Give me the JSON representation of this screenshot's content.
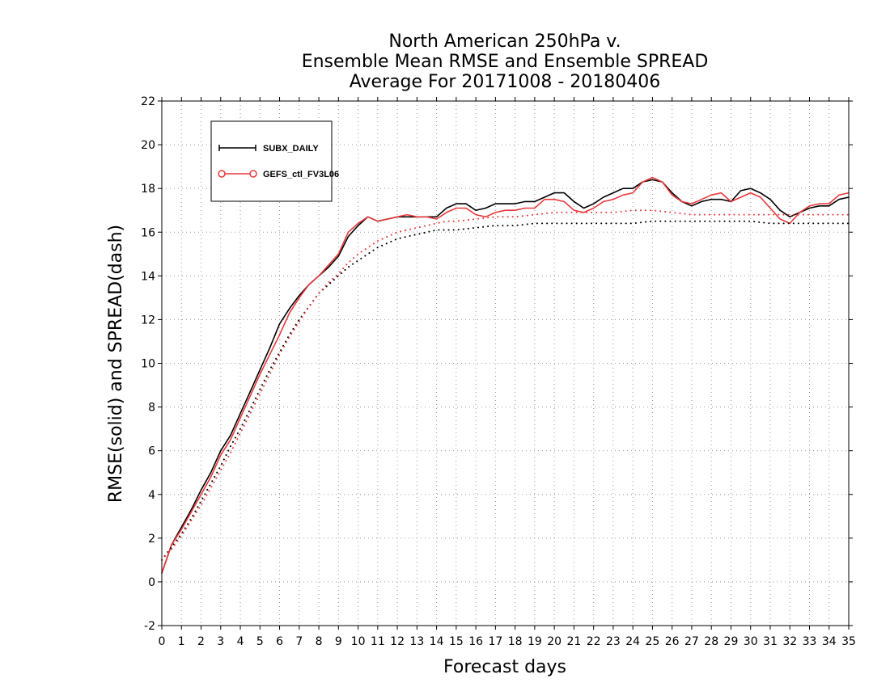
{
  "chart_data": {
    "type": "line",
    "title": [
      "North American 250hPa v.",
      "Ensemble Mean RMSE and Ensemble SPREAD",
      "Average For 20171008 - 20180406"
    ],
    "xlabel": "Forecast days",
    "ylabel": "RMSE(solid) and SPREAD(dash)",
    "xlim": [
      0,
      35
    ],
    "ylim": [
      -2,
      22
    ],
    "xticks": [
      "0",
      "1",
      "2",
      "3",
      "4",
      "5",
      "6",
      "7",
      "8",
      "9",
      "10",
      "11",
      "12",
      "13",
      "14",
      "15",
      "16",
      "17",
      "18",
      "19",
      "20",
      "21",
      "22",
      "23",
      "24",
      "25",
      "26",
      "27",
      "28",
      "29",
      "30",
      "31",
      "32",
      "33",
      "34",
      "35"
    ],
    "yticks": [
      "-2",
      "0",
      "2",
      "4",
      "6",
      "8",
      "10",
      "12",
      "14",
      "16",
      "18",
      "20",
      "22"
    ],
    "grid": true,
    "legend_position": "top-left",
    "colors": {
      "series1": "#000000",
      "series2": "#e8383b"
    },
    "series": [
      {
        "name": "SUBX_DAILY",
        "metric": "RMSE",
        "style": "solid",
        "color": "#000000",
        "x": [
          0,
          0.5,
          1,
          1.5,
          2,
          2.5,
          3,
          3.5,
          4,
          4.5,
          5,
          5.5,
          6,
          6.5,
          7,
          7.5,
          8,
          8.5,
          9,
          9.5,
          10,
          10.5,
          11,
          11.5,
          12,
          12.5,
          13,
          13.5,
          14,
          14.5,
          15,
          15.5,
          16,
          16.5,
          17,
          17.5,
          18,
          18.5,
          19,
          19.5,
          20,
          20.5,
          21,
          21.5,
          22,
          22.5,
          23,
          23.5,
          24,
          24.5,
          25,
          25.5,
          26,
          26.5,
          27,
          27.5,
          28,
          28.5,
          29,
          29.5,
          30,
          30.5,
          31,
          31.5,
          32,
          32.5,
          33,
          33.5,
          34,
          34.5,
          35
        ],
        "values": [
          0.4,
          1.7,
          2.5,
          3.3,
          4.2,
          5.0,
          6.0,
          6.7,
          7.7,
          8.7,
          9.7,
          10.7,
          11.8,
          12.5,
          13.1,
          13.6,
          14.0,
          14.4,
          14.9,
          15.8,
          16.3,
          16.7,
          16.5,
          16.6,
          16.7,
          16.7,
          16.7,
          16.7,
          16.7,
          17.1,
          17.3,
          17.3,
          17.0,
          17.1,
          17.3,
          17.3,
          17.3,
          17.4,
          17.4,
          17.6,
          17.8,
          17.8,
          17.4,
          17.1,
          17.3,
          17.6,
          17.8,
          18.0,
          18.0,
          18.3,
          18.4,
          18.3,
          17.8,
          17.4,
          17.2,
          17.4,
          17.5,
          17.5,
          17.4,
          17.9,
          18.0,
          17.8,
          17.5,
          17.0,
          16.7,
          16.9,
          17.1,
          17.2,
          17.2,
          17.5,
          17.6
        ]
      },
      {
        "name": "GEFS_ctl_FV3L06",
        "metric": "RMSE",
        "style": "solid",
        "color": "#e8383b",
        "x": [
          0,
          0.5,
          1,
          1.5,
          2,
          2.5,
          3,
          3.5,
          4,
          4.5,
          5,
          5.5,
          6,
          6.5,
          7,
          7.5,
          8,
          8.5,
          9,
          9.5,
          10,
          10.5,
          11,
          11.5,
          12,
          12.5,
          13,
          13.5,
          14,
          14.5,
          15,
          15.5,
          16,
          16.5,
          17,
          17.5,
          18,
          18.5,
          19,
          19.5,
          20,
          20.5,
          21,
          21.5,
          22,
          22.5,
          23,
          23.5,
          24,
          24.5,
          25,
          25.5,
          26,
          26.5,
          27,
          27.5,
          28,
          28.5,
          29,
          29.5,
          30,
          30.5,
          31,
          31.5,
          32,
          32.5,
          33,
          33.5,
          34,
          34.5,
          35
        ],
        "values": [
          0.4,
          1.7,
          2.4,
          3.2,
          4.0,
          4.8,
          5.8,
          6.5,
          7.5,
          8.5,
          9.5,
          10.4,
          11.3,
          12.3,
          13.0,
          13.6,
          14.0,
          14.5,
          15.0,
          16.0,
          16.4,
          16.7,
          16.5,
          16.6,
          16.7,
          16.8,
          16.7,
          16.7,
          16.6,
          16.9,
          17.1,
          17.1,
          16.8,
          16.7,
          16.9,
          17.0,
          17.0,
          17.1,
          17.1,
          17.5,
          17.5,
          17.4,
          17.0,
          16.9,
          17.1,
          17.4,
          17.5,
          17.7,
          17.8,
          18.3,
          18.5,
          18.3,
          17.7,
          17.4,
          17.3,
          17.5,
          17.7,
          17.8,
          17.4,
          17.6,
          17.8,
          17.6,
          17.1,
          16.6,
          16.4,
          16.9,
          17.2,
          17.3,
          17.3,
          17.7,
          17.8
        ]
      },
      {
        "name": "SUBX_DAILY",
        "metric": "SPREAD",
        "style": "dotted",
        "color": "#000000",
        "x": [
          0,
          0.5,
          1,
          1.5,
          2,
          2.5,
          3,
          3.5,
          4,
          4.5,
          5,
          5.5,
          6,
          6.5,
          7,
          7.5,
          8,
          8.5,
          9,
          9.5,
          10,
          10.5,
          11,
          11.5,
          12,
          12.5,
          13,
          13.5,
          14,
          14.5,
          15,
          16,
          17,
          18,
          19,
          20,
          21,
          22,
          23,
          24,
          25,
          26,
          27,
          28,
          29,
          30,
          31,
          32,
          33,
          34,
          35
        ],
        "values": [
          1.0,
          1.6,
          2.2,
          2.9,
          3.7,
          4.5,
          5.3,
          6.2,
          7.0,
          7.9,
          8.8,
          9.7,
          10.5,
          11.3,
          12.0,
          12.6,
          13.2,
          13.6,
          14.0,
          14.4,
          14.7,
          15.0,
          15.3,
          15.5,
          15.7,
          15.8,
          15.9,
          16.0,
          16.1,
          16.1,
          16.1,
          16.2,
          16.3,
          16.3,
          16.4,
          16.4,
          16.4,
          16.4,
          16.4,
          16.4,
          16.5,
          16.5,
          16.5,
          16.5,
          16.5,
          16.5,
          16.4,
          16.4,
          16.4,
          16.4,
          16.4
        ]
      },
      {
        "name": "GEFS_ctl_FV3L06",
        "metric": "SPREAD",
        "style": "dotted",
        "color": "#e8383b",
        "x": [
          0,
          0.5,
          1,
          1.5,
          2,
          2.5,
          3,
          3.5,
          4,
          4.5,
          5,
          5.5,
          6,
          6.5,
          7,
          7.5,
          8,
          8.5,
          9,
          9.5,
          10,
          10.5,
          11,
          11.5,
          12,
          12.5,
          13,
          13.5,
          14,
          14.5,
          15,
          16,
          17,
          18,
          19,
          20,
          21,
          22,
          23,
          24,
          25,
          26,
          27,
          28,
          29,
          30,
          31,
          32,
          33,
          34,
          35
        ],
        "values": [
          1.0,
          1.5,
          2.1,
          2.8,
          3.5,
          4.3,
          5.1,
          5.9,
          6.8,
          7.7,
          8.6,
          9.5,
          10.4,
          11.2,
          11.9,
          12.6,
          13.2,
          13.7,
          14.1,
          14.6,
          15.0,
          15.3,
          15.6,
          15.8,
          16.0,
          16.1,
          16.2,
          16.3,
          16.4,
          16.5,
          16.5,
          16.6,
          16.7,
          16.7,
          16.8,
          16.9,
          16.9,
          16.9,
          16.9,
          17.0,
          17.0,
          16.9,
          16.8,
          16.8,
          16.8,
          16.8,
          16.8,
          16.8,
          16.8,
          16.8,
          16.8
        ]
      }
    ],
    "legend": [
      {
        "label": "SUBX_DAILY",
        "color": "#000000",
        "marker": "plus"
      },
      {
        "label": "GEFS_ctl_FV3L06",
        "color": "#e8383b",
        "marker": "circle"
      }
    ]
  }
}
